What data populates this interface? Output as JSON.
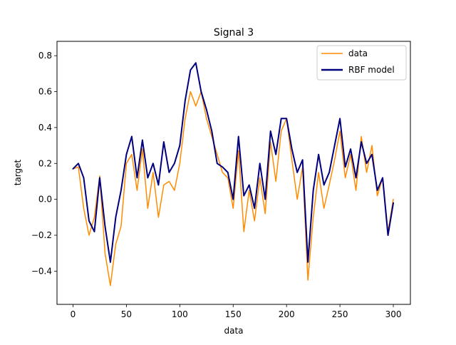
{
  "chart_data": {
    "type": "line",
    "title": "Signal 3",
    "xlabel": "data",
    "ylabel": "target",
    "xlim": [
      -15,
      316
    ],
    "ylim": [
      -0.585,
      0.88
    ],
    "xticks": [
      0,
      50,
      100,
      150,
      200,
      250,
      300
    ],
    "yticks": [
      -0.4,
      -0.2,
      0.0,
      0.2,
      0.4,
      0.6,
      0.8
    ],
    "ytick_labels": [
      "−0.4",
      "−0.2",
      "0.0",
      "0.2",
      "0.4",
      "0.6",
      "0.8"
    ],
    "grid": false,
    "legend_position": "top-right",
    "x": [
      0,
      5,
      10,
      15,
      20,
      25,
      30,
      35,
      40,
      45,
      50,
      55,
      60,
      65,
      70,
      75,
      80,
      85,
      90,
      95,
      100,
      105,
      110,
      115,
      120,
      125,
      130,
      135,
      140,
      145,
      150,
      155,
      160,
      165,
      170,
      175,
      180,
      185,
      190,
      195,
      200,
      205,
      210,
      215,
      220,
      225,
      230,
      235,
      240,
      245,
      250,
      255,
      260,
      265,
      270,
      275,
      280,
      285,
      290,
      295,
      300
    ],
    "series": [
      {
        "name": "data",
        "color": "#ff8c00",
        "line_width": 1.5,
        "values": [
          0.17,
          0.18,
          -0.05,
          -0.2,
          -0.1,
          0.13,
          -0.3,
          -0.48,
          -0.25,
          -0.15,
          0.2,
          0.25,
          0.05,
          0.28,
          -0.05,
          0.15,
          -0.1,
          0.08,
          0.1,
          0.05,
          0.2,
          0.45,
          0.6,
          0.52,
          0.6,
          0.45,
          0.35,
          0.25,
          0.15,
          0.12,
          -0.05,
          0.27,
          -0.18,
          0.05,
          -0.12,
          0.12,
          -0.08,
          0.32,
          0.1,
          0.38,
          0.45,
          0.22,
          0.0,
          0.18,
          -0.45,
          -0.1,
          0.15,
          -0.05,
          0.08,
          0.22,
          0.38,
          0.12,
          0.25,
          0.05,
          0.35,
          0.15,
          0.3,
          0.02,
          0.12,
          -0.18,
          0.0
        ]
      },
      {
        "name": "RBF model",
        "color": "#00007f",
        "line_width": 2.0,
        "values": [
          0.17,
          0.2,
          0.12,
          -0.12,
          -0.18,
          0.12,
          -0.15,
          -0.35,
          -0.1,
          0.05,
          0.25,
          0.35,
          0.12,
          0.33,
          0.12,
          0.2,
          0.08,
          0.32,
          0.15,
          0.2,
          0.3,
          0.55,
          0.72,
          0.76,
          0.6,
          0.5,
          0.38,
          0.2,
          0.18,
          0.15,
          0.0,
          0.35,
          0.02,
          0.08,
          -0.05,
          0.2,
          0.0,
          0.38,
          0.25,
          0.45,
          0.45,
          0.28,
          0.15,
          0.22,
          -0.35,
          0.05,
          0.25,
          0.08,
          0.15,
          0.3,
          0.45,
          0.18,
          0.28,
          0.12,
          0.32,
          0.2,
          0.25,
          0.05,
          0.12,
          -0.2,
          -0.02
        ]
      }
    ]
  }
}
